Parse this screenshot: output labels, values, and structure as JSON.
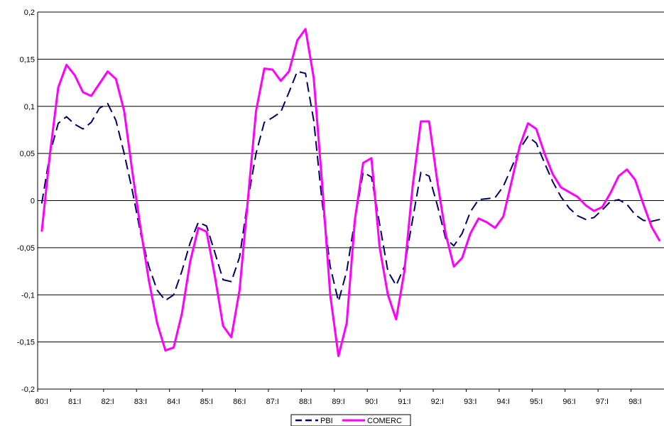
{
  "chart_data": {
    "type": "line",
    "title": "",
    "xlabel": "",
    "ylabel": "",
    "ylim": [
      -0.2,
      0.2
    ],
    "yticks": [
      -0.2,
      -0.15,
      -0.1,
      -0.05,
      0,
      0.05,
      0.1,
      0.15,
      0.2
    ],
    "ytick_labels": [
      "-0,2",
      "-0,15",
      "-0,1",
      "-0,05",
      "0",
      "0,05",
      "0,1",
      "0,15",
      "0,2"
    ],
    "xtick_labels": [
      "80:I",
      "81:I",
      "82:I",
      "83:I",
      "84:I",
      "85:I",
      "86:I",
      "87:I",
      "88:I",
      "89:I",
      "90:I",
      "91:I",
      "92:I",
      "93:I",
      "94:I",
      "95:I",
      "96:I",
      "97:I",
      "98:I"
    ],
    "grid": "horizontal",
    "legend_position": "bottom-center",
    "x": [
      "80:I",
      "80:II",
      "80:III",
      "80:IV",
      "81:I",
      "81:II",
      "81:III",
      "81:IV",
      "82:I",
      "82:II",
      "82:III",
      "82:IV",
      "83:I",
      "83:II",
      "83:III",
      "83:IV",
      "84:I",
      "84:II",
      "84:III",
      "84:IV",
      "85:I",
      "85:II",
      "85:III",
      "85:IV",
      "86:I",
      "86:II",
      "86:III",
      "86:IV",
      "87:I",
      "87:II",
      "87:III",
      "87:IV",
      "88:I",
      "88:II",
      "88:III",
      "88:IV",
      "89:I",
      "89:II",
      "89:III",
      "89:IV",
      "90:I",
      "90:II",
      "90:III",
      "90:IV",
      "91:I",
      "91:II",
      "91:III",
      "91:IV",
      "92:I",
      "92:II",
      "92:III",
      "92:IV",
      "93:I",
      "93:II",
      "93:III",
      "93:IV",
      "94:I",
      "94:II",
      "94:III",
      "94:IV",
      "95:I",
      "95:II",
      "95:III",
      "95:IV",
      "96:I",
      "96:II",
      "96:III",
      "96:IV",
      "97:I",
      "97:II",
      "97:III",
      "97:IV",
      "98:I",
      "98:II",
      "98:III",
      "98:IV"
    ],
    "series": [
      {
        "name": "PBI",
        "color": "#000066",
        "dash": "dashed",
        "values": [
          -0.003,
          0.05,
          0.082,
          0.089,
          0.081,
          0.076,
          0.083,
          0.098,
          0.103,
          0.085,
          0.05,
          0.01,
          -0.035,
          -0.07,
          -0.095,
          -0.106,
          -0.1,
          -0.075,
          -0.045,
          -0.023,
          -0.027,
          -0.055,
          -0.084,
          -0.086,
          -0.06,
          0.0,
          0.05,
          0.083,
          0.088,
          0.094,
          0.115,
          0.137,
          0.135,
          0.085,
          0.0,
          -0.07,
          -0.107,
          -0.075,
          -0.02,
          0.03,
          0.025,
          -0.025,
          -0.075,
          -0.09,
          -0.07,
          -0.02,
          0.03,
          0.026,
          -0.005,
          -0.04,
          -0.048,
          -0.035,
          -0.012,
          0.001,
          0.002,
          0.003,
          0.015,
          0.035,
          0.055,
          0.068,
          0.061,
          0.04,
          0.02,
          0.004,
          -0.008,
          -0.016,
          -0.02,
          -0.018,
          -0.01,
          -0.001,
          0.001,
          -0.004,
          -0.015,
          -0.021,
          -0.022,
          -0.02
        ]
      },
      {
        "name": "COMERC",
        "color": "#ff00ff",
        "dash": "solid",
        "values": [
          -0.033,
          0.05,
          0.12,
          0.144,
          0.133,
          0.115,
          0.111,
          0.124,
          0.137,
          0.129,
          0.095,
          0.03,
          -0.03,
          -0.085,
          -0.13,
          -0.159,
          -0.156,
          -0.12,
          -0.065,
          -0.029,
          -0.033,
          -0.08,
          -0.133,
          -0.145,
          -0.095,
          0.0,
          0.095,
          0.14,
          0.139,
          0.127,
          0.137,
          0.17,
          0.182,
          0.13,
          0.02,
          -0.1,
          -0.165,
          -0.13,
          -0.02,
          0.04,
          0.045,
          -0.05,
          -0.1,
          -0.126,
          -0.075,
          0.015,
          0.084,
          0.084,
          0.02,
          -0.035,
          -0.07,
          -0.061,
          -0.035,
          -0.019,
          -0.023,
          -0.029,
          -0.017,
          0.02,
          0.058,
          0.082,
          0.076,
          0.05,
          0.028,
          0.014,
          0.009,
          0.004,
          -0.005,
          -0.011,
          -0.007,
          0.008,
          0.026,
          0.033,
          0.022,
          -0.004,
          -0.028,
          -0.043
        ]
      }
    ]
  }
}
